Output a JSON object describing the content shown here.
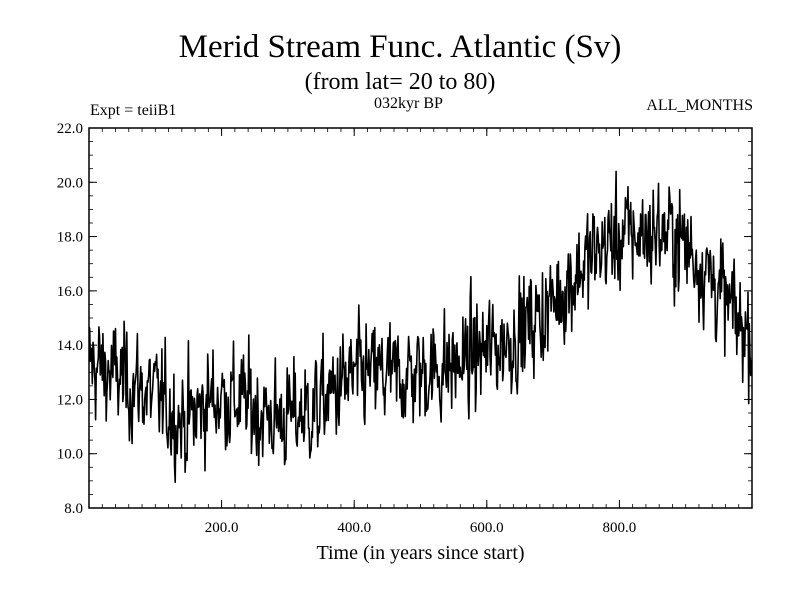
{
  "chart_data": {
    "type": "line",
    "title": "Merid Stream Func. Atlantic (Sv)",
    "subtitle": "(from lat= 20 to 80)",
    "annotations": {
      "left": "Expt = teiiB1",
      "center": "032kyr BP",
      "right": "ALL_MONTHS"
    },
    "xlabel": "Time (in years since start)",
    "ylabel": "",
    "xlim": [
      0,
      1000
    ],
    "ylim": [
      8.0,
      22.0
    ],
    "x_ticks": [
      200,
      400,
      600,
      800
    ],
    "x_tick_labels": [
      "200.0",
      "400.0",
      "600.0",
      "800.0"
    ],
    "y_ticks": [
      8,
      10,
      12,
      14,
      16,
      18,
      20,
      22
    ],
    "y_tick_labels": [
      "8.0",
      "10.0",
      "12.0",
      "14.0",
      "16.0",
      "18.0",
      "20.0",
      "22.0"
    ],
    "grid": false,
    "legend": "none",
    "series": [
      {
        "color": "#000000",
        "x": [
          0,
          20,
          40,
          60,
          80,
          100,
          120,
          140,
          160,
          180,
          200,
          220,
          240,
          260,
          280,
          300,
          320,
          340,
          360,
          380,
          400,
          420,
          440,
          460,
          480,
          500,
          520,
          540,
          560,
          580,
          600,
          620,
          640,
          660,
          680,
          700,
          720,
          740,
          760,
          780,
          800,
          820,
          840,
          860,
          880,
          900,
          920,
          940,
          960,
          980,
          1000
        ],
        "values": [
          13.4,
          13.1,
          12.9,
          12.6,
          12.4,
          12.1,
          11.7,
          11.2,
          11.4,
          12.0,
          12.1,
          12.0,
          11.8,
          11.5,
          11.3,
          11.3,
          11.5,
          11.6,
          12.1,
          12.5,
          12.8,
          12.9,
          12.9,
          12.8,
          12.9,
          13.0,
          13.1,
          13.2,
          13.3,
          13.6,
          13.8,
          14.0,
          14.3,
          14.7,
          15.1,
          15.6,
          16.2,
          16.8,
          17.3,
          17.7,
          18.0,
          18.1,
          18.1,
          18.2,
          18.1,
          17.7,
          17.1,
          16.5,
          15.6,
          14.8,
          14.4
        ],
        "variability_sv": 0.95
      }
    ]
  }
}
